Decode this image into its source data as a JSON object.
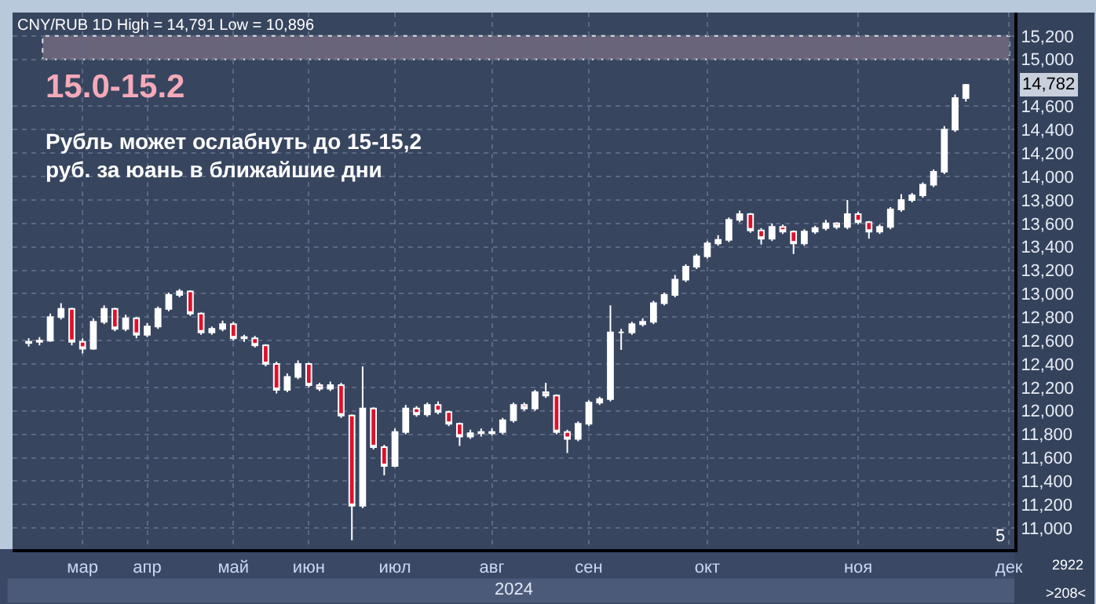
{
  "chart_data": {
    "type": "candlestick",
    "title": "15.0-15.2",
    "subtitle": "Рубль может ослабнуть до 15-15,2\nруб. за юань в ближайшие дни",
    "annotations": [
      "CNY/RUB 1D High = 14,791 Low = 10,896",
      "14,782",
      "2024",
      "5",
      "2922",
      ">208<"
    ],
    "categories": [
      null,
      null,
      null,
      null,
      null,
      "мар",
      null,
      null,
      null,
      null,
      null,
      "апр",
      null,
      null,
      null,
      null,
      null,
      null,
      null,
      "май",
      null,
      null,
      null,
      null,
      null,
      null,
      "июн",
      null,
      null,
      null,
      null,
      null,
      null,
      null,
      "июл",
      null,
      null,
      null,
      null,
      null,
      null,
      null,
      null,
      "авг",
      null,
      null,
      null,
      null,
      null,
      null,
      null,
      null,
      "сен",
      null,
      null,
      null,
      null,
      null,
      null,
      null,
      null,
      null,
      null,
      "окт",
      null,
      null,
      null,
      null,
      null,
      null,
      null,
      null,
      null,
      null,
      null,
      null,
      null,
      "ноя",
      null,
      null,
      null,
      null,
      null,
      null,
      null,
      null,
      null,
      null,
      null,
      null,
      null,
      "дек"
    ],
    "ohlc": [
      [
        12580,
        12620,
        12550,
        12590
      ],
      [
        12590,
        12630,
        12560,
        12600
      ],
      [
        12600,
        12830,
        12590,
        12800
      ],
      [
        12800,
        12920,
        12780,
        12870
      ],
      [
        12870,
        12880,
        12560,
        12590
      ],
      [
        12590,
        12620,
        12490,
        12530
      ],
      [
        12530,
        12790,
        12520,
        12760
      ],
      [
        12760,
        12900,
        12740,
        12870
      ],
      [
        12870,
        12880,
        12680,
        12700
      ],
      [
        12700,
        12820,
        12680,
        12790
      ],
      [
        12790,
        12800,
        12620,
        12650
      ],
      [
        12650,
        12750,
        12630,
        12720
      ],
      [
        12720,
        12890,
        12700,
        12870
      ],
      [
        12870,
        13010,
        12850,
        12990
      ],
      [
        12990,
        13040,
        12970,
        13020
      ],
      [
        13020,
        13030,
        12810,
        12830
      ],
      [
        12830,
        12840,
        12650,
        12670
      ],
      [
        12670,
        12720,
        12650,
        12700
      ],
      [
        12700,
        12770,
        12680,
        12740
      ],
      [
        12740,
        12760,
        12600,
        12620
      ],
      [
        12620,
        12650,
        12590,
        12630
      ],
      [
        12620,
        12640,
        12540,
        12560
      ],
      [
        12560,
        12570,
        12380,
        12400
      ],
      [
        12400,
        12420,
        12150,
        12180
      ],
      [
        12180,
        12320,
        12160,
        12290
      ],
      [
        12290,
        12430,
        12270,
        12400
      ],
      [
        12400,
        12410,
        12200,
        12220
      ],
      [
        12220,
        12240,
        12170,
        12190
      ],
      [
        12190,
        12250,
        12170,
        12220
      ],
      [
        12220,
        12240,
        11940,
        11960
      ],
      [
        11960,
        11970,
        10896,
        11190
      ],
      [
        11190,
        12380,
        11170,
        12020
      ],
      [
        12020,
        12030,
        11670,
        11690
      ],
      [
        11690,
        11710,
        11450,
        11530
      ],
      [
        11530,
        11850,
        11520,
        11820
      ],
      [
        11820,
        12050,
        11800,
        12020
      ],
      [
        12020,
        12040,
        11950,
        11970
      ],
      [
        11970,
        12070,
        11950,
        12050
      ],
      [
        12050,
        12080,
        11970,
        11990
      ],
      [
        11990,
        12000,
        11870,
        11890
      ],
      [
        11890,
        11900,
        11700,
        11780
      ],
      [
        11780,
        11840,
        11760,
        11810
      ],
      [
        11810,
        11850,
        11780,
        11820
      ],
      [
        11810,
        11850,
        11790,
        11820
      ],
      [
        11820,
        11940,
        11800,
        11920
      ],
      [
        11920,
        12070,
        11900,
        12050
      ],
      [
        12050,
        12070,
        12000,
        12020
      ],
      [
        12020,
        12180,
        12000,
        12160
      ],
      [
        12160,
        12240,
        12110,
        12130
      ],
      [
        12130,
        12140,
        11800,
        11820
      ],
      [
        11820,
        11840,
        11640,
        11760
      ],
      [
        11760,
        11910,
        11740,
        11890
      ],
      [
        11890,
        12090,
        11870,
        12070
      ],
      [
        12070,
        12120,
        12050,
        12100
      ],
      [
        12100,
        12900,
        12080,
        12670
      ],
      [
        12670,
        12700,
        12520,
        12670
      ],
      [
        12670,
        12760,
        12650,
        12740
      ],
      [
        12740,
        12790,
        12720,
        12760
      ],
      [
        12760,
        12940,
        12740,
        12920
      ],
      [
        12920,
        13010,
        12900,
        12990
      ],
      [
        12990,
        13160,
        12970,
        13120
      ],
      [
        13120,
        13250,
        13100,
        13230
      ],
      [
        13230,
        13340,
        13210,
        13320
      ],
      [
        13320,
        13450,
        13300,
        13430
      ],
      [
        13430,
        13500,
        13410,
        13460
      ],
      [
        13460,
        13650,
        13440,
        13630
      ],
      [
        13630,
        13710,
        13610,
        13680
      ],
      [
        13680,
        13690,
        13520,
        13540
      ],
      [
        13540,
        13560,
        13420,
        13470
      ],
      [
        13470,
        13600,
        13450,
        13570
      ],
      [
        13570,
        13590,
        13510,
        13530
      ],
      [
        13530,
        13540,
        13340,
        13430
      ],
      [
        13430,
        13550,
        13410,
        13530
      ],
      [
        13530,
        13580,
        13510,
        13560
      ],
      [
        13560,
        13630,
        13540,
        13600
      ],
      [
        13600,
        13610,
        13550,
        13570
      ],
      [
        13570,
        13800,
        13550,
        13680
      ],
      [
        13680,
        13700,
        13590,
        13610
      ],
      [
        13610,
        13620,
        13470,
        13530
      ],
      [
        13530,
        13590,
        13510,
        13570
      ],
      [
        13570,
        13740,
        13550,
        13720
      ],
      [
        13720,
        13850,
        13700,
        13800
      ],
      [
        13800,
        13860,
        13780,
        13840
      ],
      [
        13840,
        13950,
        13820,
        13930
      ],
      [
        13930,
        14060,
        13910,
        14040
      ],
      [
        14040,
        14430,
        14020,
        14400
      ],
      [
        14400,
        14700,
        14380,
        14670
      ],
      [
        14670,
        14791,
        14640,
        14782
      ],
      null,
      null,
      null,
      null
    ],
    "ylim": [
      10820,
      15400
    ],
    "yticks": [
      {
        "value": 11000,
        "label": "11,000"
      },
      {
        "value": 11200,
        "label": "11,200"
      },
      {
        "value": 11400,
        "label": "11,400"
      },
      {
        "value": 11600,
        "label": "11,600"
      },
      {
        "value": 11800,
        "label": "11,800"
      },
      {
        "value": 12000,
        "label": "12,000"
      },
      {
        "value": 12200,
        "label": "12,200"
      },
      {
        "value": 12400,
        "label": "12,400"
      },
      {
        "value": 12600,
        "label": "12,600"
      },
      {
        "value": 12800,
        "label": "12,800"
      },
      {
        "value": 13000,
        "label": "13,000"
      },
      {
        "value": 13200,
        "label": "13,200"
      },
      {
        "value": 13400,
        "label": "13,400"
      },
      {
        "value": 13600,
        "label": "13,600"
      },
      {
        "value": 13800,
        "label": "13,800"
      },
      {
        "value": 14000,
        "label": "14,000"
      },
      {
        "value": 14200,
        "label": "14,200"
      },
      {
        "value": 14400,
        "label": "14,400"
      },
      {
        "value": 14600,
        "label": "14,600"
      },
      {
        "value": 15000,
        "label": "15,000"
      },
      {
        "value": 15200,
        "label": "15,200"
      }
    ],
    "bands": [
      {
        "axis": "y",
        "from": 15000,
        "to": 15200,
        "color": "#69647a"
      }
    ],
    "grid": true,
    "legend": false
  }
}
